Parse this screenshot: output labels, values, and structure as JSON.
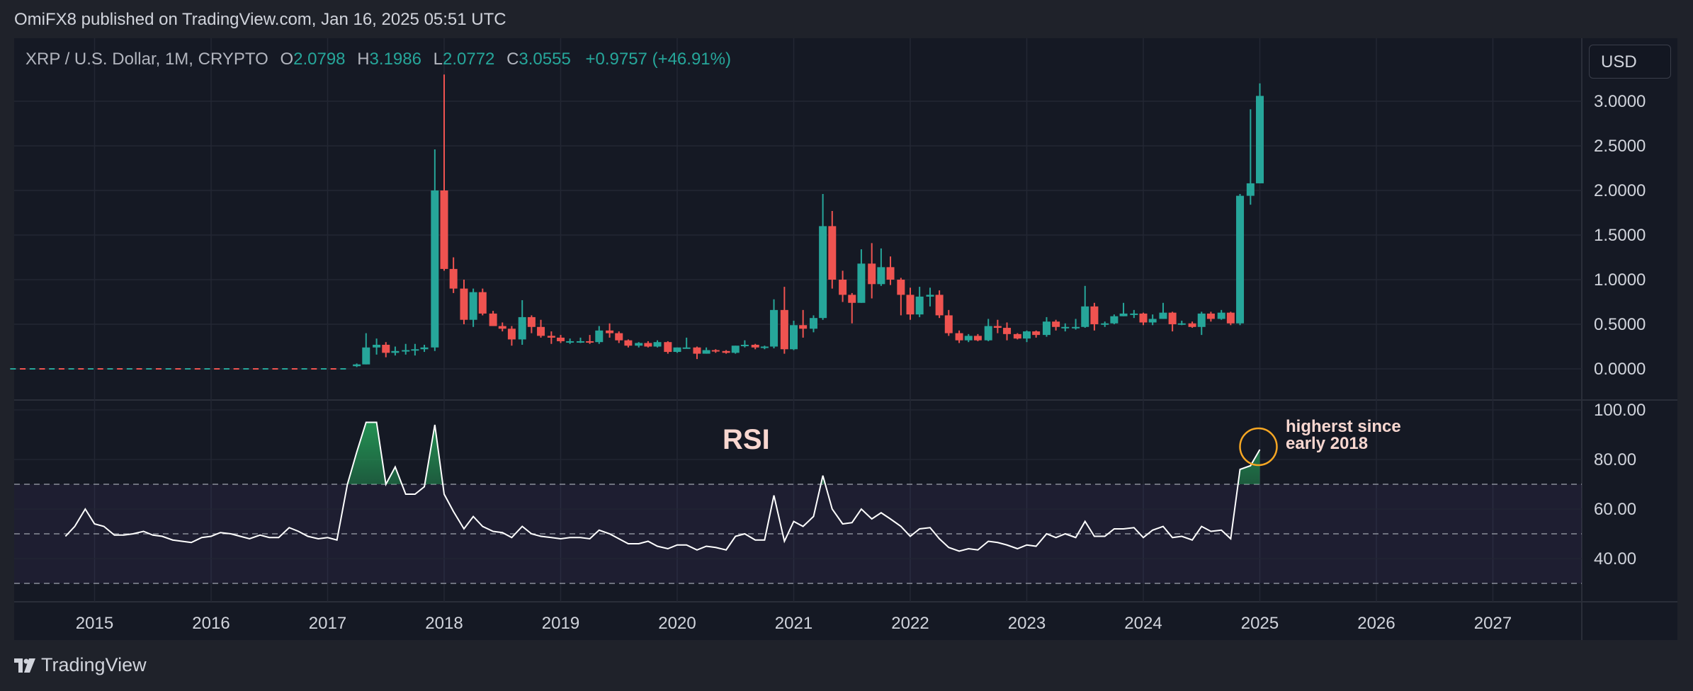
{
  "header": {
    "published": "OmiFX8 published on TradingView.com, Jan 16, 2025 05:51 UTC"
  },
  "legend": {
    "symbol": "XRP / U.S. Dollar, 1M, CRYPTO",
    "open_label": "O",
    "open": "2.0798",
    "high_label": "H",
    "high": "3.1986",
    "low_label": "L",
    "low": "2.0772",
    "close_label": "C",
    "close": "3.0555",
    "change": "+0.9757 (+46.91%)"
  },
  "currency_button": "USD",
  "rsi_label": "RSI",
  "annotation": {
    "line1": "highers t since",
    "line2": "early 2018"
  },
  "footer": {
    "brand": "TradingView"
  },
  "colors": {
    "up": "#26a69a",
    "down": "#ef5350",
    "background": "#151924",
    "rsi_line": "#ffffff",
    "annotation_circle": "#f5a623",
    "rsi_band": "#7e57c2"
  },
  "chart_data": [
    {
      "type": "candlestick",
      "title": "XRP / U.S. Dollar, 1M, CRYPTO",
      "ylim": [
        -0.35,
        3.75
      ],
      "y_ticks": [
        "3.0000",
        "2.5000",
        "2.0000",
        "1.5000",
        "1.0000",
        "0.5000",
        "0.0000"
      ],
      "y_tick_values": [
        3.0,
        2.5,
        2.0,
        1.5,
        1.0,
        0.5,
        0.0
      ],
      "x_ticks": [
        "2015",
        "2016",
        "2017",
        "2018",
        "2019",
        "2020",
        "2021",
        "2022",
        "2023",
        "2024",
        "2025",
        "2026",
        "2027"
      ],
      "grid": true,
      "candle_columns": [
        "year_fraction",
        "open",
        "high",
        "low",
        "close"
      ],
      "candles": [
        [
          2017.25,
          0.03,
          0.06,
          0.02,
          0.05
        ],
        [
          2017.33,
          0.05,
          0.4,
          0.05,
          0.24
        ],
        [
          2017.42,
          0.24,
          0.34,
          0.16,
          0.27
        ],
        [
          2017.5,
          0.27,
          0.3,
          0.13,
          0.18
        ],
        [
          2017.58,
          0.18,
          0.25,
          0.15,
          0.2
        ],
        [
          2017.67,
          0.2,
          0.28,
          0.16,
          0.21
        ],
        [
          2017.75,
          0.21,
          0.28,
          0.15,
          0.22
        ],
        [
          2017.83,
          0.22,
          0.27,
          0.19,
          0.24
        ],
        [
          2017.92,
          0.24,
          2.46,
          0.2,
          2.0
        ],
        [
          2018.0,
          2.0,
          3.3,
          1.1,
          1.12
        ],
        [
          2018.08,
          1.12,
          1.25,
          0.85,
          0.9
        ],
        [
          2018.17,
          0.9,
          1.0,
          0.5,
          0.55
        ],
        [
          2018.25,
          0.55,
          0.9,
          0.47,
          0.86
        ],
        [
          2018.33,
          0.86,
          0.9,
          0.6,
          0.62
        ],
        [
          2018.42,
          0.62,
          0.65,
          0.48,
          0.48
        ],
        [
          2018.5,
          0.48,
          0.52,
          0.42,
          0.45
        ],
        [
          2018.58,
          0.45,
          0.48,
          0.26,
          0.33
        ],
        [
          2018.67,
          0.33,
          0.77,
          0.27,
          0.58
        ],
        [
          2018.75,
          0.58,
          0.6,
          0.4,
          0.47
        ],
        [
          2018.83,
          0.47,
          0.55,
          0.35,
          0.37
        ],
        [
          2018.92,
          0.37,
          0.42,
          0.28,
          0.35
        ],
        [
          2019.0,
          0.35,
          0.38,
          0.29,
          0.31
        ],
        [
          2019.08,
          0.31,
          0.34,
          0.28,
          0.31
        ],
        [
          2019.17,
          0.31,
          0.35,
          0.29,
          0.31
        ],
        [
          2019.25,
          0.31,
          0.38,
          0.28,
          0.3
        ],
        [
          2019.33,
          0.3,
          0.48,
          0.28,
          0.43
        ],
        [
          2019.42,
          0.43,
          0.51,
          0.35,
          0.4
        ],
        [
          2019.5,
          0.4,
          0.42,
          0.29,
          0.32
        ],
        [
          2019.58,
          0.32,
          0.33,
          0.24,
          0.26
        ],
        [
          2019.67,
          0.26,
          0.3,
          0.24,
          0.29
        ],
        [
          2019.75,
          0.29,
          0.31,
          0.24,
          0.25
        ],
        [
          2019.83,
          0.25,
          0.32,
          0.24,
          0.3
        ],
        [
          2019.92,
          0.3,
          0.31,
          0.17,
          0.19
        ],
        [
          2020.0,
          0.19,
          0.24,
          0.18,
          0.24
        ],
        [
          2020.08,
          0.24,
          0.35,
          0.23,
          0.24
        ],
        [
          2020.17,
          0.24,
          0.25,
          0.11,
          0.17
        ],
        [
          2020.25,
          0.17,
          0.24,
          0.17,
          0.21
        ],
        [
          2020.33,
          0.21,
          0.22,
          0.18,
          0.2
        ],
        [
          2020.42,
          0.2,
          0.21,
          0.17,
          0.18
        ],
        [
          2020.5,
          0.18,
          0.26,
          0.17,
          0.26
        ],
        [
          2020.58,
          0.26,
          0.32,
          0.24,
          0.27
        ],
        [
          2020.67,
          0.27,
          0.28,
          0.22,
          0.24
        ],
        [
          2020.75,
          0.24,
          0.26,
          0.22,
          0.25
        ],
        [
          2020.83,
          0.25,
          0.78,
          0.23,
          0.66
        ],
        [
          2020.92,
          0.66,
          0.92,
          0.17,
          0.22
        ],
        [
          2021.0,
          0.22,
          0.54,
          0.21,
          0.49
        ],
        [
          2021.08,
          0.49,
          0.66,
          0.35,
          0.45
        ],
        [
          2021.17,
          0.45,
          0.6,
          0.41,
          0.57
        ],
        [
          2021.25,
          0.57,
          1.96,
          0.55,
          1.6
        ],
        [
          2021.33,
          1.6,
          1.77,
          0.9,
          1.0
        ],
        [
          2021.42,
          1.0,
          1.1,
          0.75,
          0.83
        ],
        [
          2021.5,
          0.83,
          0.85,
          0.51,
          0.74
        ],
        [
          2021.58,
          0.74,
          1.34,
          0.74,
          1.18
        ],
        [
          2021.67,
          1.18,
          1.41,
          0.79,
          0.95
        ],
        [
          2021.75,
          0.95,
          1.35,
          0.93,
          1.14
        ],
        [
          2021.83,
          1.14,
          1.26,
          0.94,
          1.0
        ],
        [
          2021.92,
          1.0,
          1.02,
          0.6,
          0.83
        ],
        [
          2022.0,
          0.83,
          0.91,
          0.55,
          0.61
        ],
        [
          2022.08,
          0.61,
          0.92,
          0.58,
          0.81
        ],
        [
          2022.17,
          0.81,
          0.91,
          0.7,
          0.83
        ],
        [
          2022.25,
          0.83,
          0.88,
          0.57,
          0.6
        ],
        [
          2022.33,
          0.6,
          0.66,
          0.37,
          0.4
        ],
        [
          2022.42,
          0.4,
          0.43,
          0.29,
          0.32
        ],
        [
          2022.5,
          0.32,
          0.39,
          0.3,
          0.37
        ],
        [
          2022.58,
          0.37,
          0.39,
          0.31,
          0.32
        ],
        [
          2022.67,
          0.32,
          0.56,
          0.31,
          0.48
        ],
        [
          2022.75,
          0.48,
          0.55,
          0.4,
          0.46
        ],
        [
          2022.83,
          0.46,
          0.52,
          0.32,
          0.39
        ],
        [
          2022.92,
          0.39,
          0.4,
          0.33,
          0.34
        ],
        [
          2023.0,
          0.34,
          0.43,
          0.3,
          0.42
        ],
        [
          2023.08,
          0.42,
          0.43,
          0.35,
          0.38
        ],
        [
          2023.17,
          0.38,
          0.58,
          0.36,
          0.53
        ],
        [
          2023.25,
          0.53,
          0.55,
          0.43,
          0.47
        ],
        [
          2023.33,
          0.47,
          0.51,
          0.42,
          0.47
        ],
        [
          2023.42,
          0.47,
          0.56,
          0.44,
          0.47
        ],
        [
          2023.5,
          0.47,
          0.93,
          0.46,
          0.7
        ],
        [
          2023.58,
          0.7,
          0.74,
          0.43,
          0.5
        ],
        [
          2023.67,
          0.5,
          0.53,
          0.47,
          0.51
        ],
        [
          2023.75,
          0.51,
          0.61,
          0.5,
          0.59
        ],
        [
          2023.83,
          0.59,
          0.74,
          0.59,
          0.62
        ],
        [
          2023.92,
          0.62,
          0.66,
          0.57,
          0.62
        ],
        [
          2024.0,
          0.62,
          0.63,
          0.49,
          0.52
        ],
        [
          2024.08,
          0.52,
          0.61,
          0.49,
          0.56
        ],
        [
          2024.17,
          0.56,
          0.74,
          0.56,
          0.63
        ],
        [
          2024.25,
          0.63,
          0.64,
          0.42,
          0.5
        ],
        [
          2024.33,
          0.5,
          0.54,
          0.49,
          0.51
        ],
        [
          2024.42,
          0.51,
          0.53,
          0.46,
          0.47
        ],
        [
          2024.5,
          0.47,
          0.64,
          0.38,
          0.62
        ],
        [
          2024.58,
          0.62,
          0.64,
          0.53,
          0.56
        ],
        [
          2024.67,
          0.56,
          0.66,
          0.55,
          0.63
        ],
        [
          2024.75,
          0.63,
          0.64,
          0.49,
          0.51
        ],
        [
          2024.83,
          0.51,
          1.96,
          0.49,
          1.94
        ],
        [
          2024.92,
          1.94,
          2.91,
          1.84,
          2.08
        ],
        [
          2025.0,
          2.08,
          3.2,
          2.08,
          3.06
        ]
      ],
      "flat_line_pre_2017": {
        "x_start": 2014.3,
        "x_end": 2017.2,
        "value": 0.0
      }
    },
    {
      "type": "line",
      "title": "RSI",
      "ylim": [
        20,
        102
      ],
      "y_ticks": [
        "100.00",
        "80.00",
        "60.00",
        "40.00"
      ],
      "y_tick_values": [
        100,
        80,
        60,
        40
      ],
      "bands": {
        "upper": 70,
        "middle": 50,
        "lower": 30
      },
      "x": [
        2014.75,
        2014.83,
        2014.92,
        2015.0,
        2015.08,
        2015.17,
        2015.25,
        2015.33,
        2015.42,
        2015.5,
        2015.58,
        2015.67,
        2015.75,
        2015.83,
        2015.92,
        2016.0,
        2016.08,
        2016.17,
        2016.25,
        2016.33,
        2016.42,
        2016.5,
        2016.58,
        2016.67,
        2016.75,
        2016.83,
        2016.92,
        2017.0,
        2017.08,
        2017.17,
        2017.25,
        2017.33,
        2017.42,
        2017.5,
        2017.58,
        2017.67,
        2017.75,
        2017.83,
        2017.92,
        2018.0,
        2018.08,
        2018.17,
        2018.25,
        2018.33,
        2018.42,
        2018.5,
        2018.58,
        2018.67,
        2018.75,
        2018.83,
        2018.92,
        2019.0,
        2019.08,
        2019.17,
        2019.25,
        2019.33,
        2019.42,
        2019.5,
        2019.58,
        2019.67,
        2019.75,
        2019.83,
        2019.92,
        2020.0,
        2020.08,
        2020.17,
        2020.25,
        2020.33,
        2020.42,
        2020.5,
        2020.58,
        2020.67,
        2020.75,
        2020.83,
        2020.92,
        2021.0,
        2021.08,
        2021.17,
        2021.25,
        2021.33,
        2021.42,
        2021.5,
        2021.58,
        2021.67,
        2021.75,
        2021.83,
        2021.92,
        2022.0,
        2022.08,
        2022.17,
        2022.25,
        2022.33,
        2022.42,
        2022.5,
        2022.58,
        2022.67,
        2022.75,
        2022.83,
        2022.92,
        2023.0,
        2023.08,
        2023.17,
        2023.25,
        2023.33,
        2023.42,
        2023.5,
        2023.58,
        2023.67,
        2023.75,
        2023.83,
        2023.92,
        2024.0,
        2024.08,
        2024.17,
        2024.25,
        2024.33,
        2024.42,
        2024.5,
        2024.58,
        2024.67,
        2024.75,
        2024.83,
        2024.92,
        2025.0
      ],
      "values": [
        49,
        53,
        60,
        54,
        53,
        49.5,
        49.5,
        50,
        51,
        49.5,
        49,
        47.5,
        47,
        46.5,
        48.5,
        49,
        50.5,
        50,
        49,
        48,
        49.5,
        48.5,
        48.5,
        52.5,
        51,
        49,
        48,
        48.5,
        47.5,
        70,
        83,
        95,
        95,
        70,
        77,
        66,
        66,
        69,
        94,
        66,
        59,
        52,
        57,
        53,
        51,
        50.5,
        48.5,
        53,
        50,
        49,
        48.5,
        48,
        48.5,
        48.5,
        48,
        51.5,
        50,
        48,
        46,
        46,
        47,
        45,
        44,
        45.5,
        45.5,
        43.5,
        45,
        44.5,
        43.5,
        49,
        50,
        47.5,
        47.5,
        65.5,
        47,
        55,
        53,
        57,
        73.5,
        60,
        54,
        54.5,
        60,
        56,
        58.5,
        56,
        53,
        49,
        52,
        52.5,
        48,
        44.5,
        43,
        44,
        43.5,
        47,
        46.5,
        45.5,
        44,
        45.5,
        45,
        50,
        48.5,
        50,
        48.5,
        55,
        49,
        49,
        52,
        52,
        52.5,
        48.5,
        51.5,
        53,
        48.5,
        49,
        47.5,
        53,
        51,
        51.5,
        48,
        76,
        77.5,
        84
      ]
    }
  ]
}
